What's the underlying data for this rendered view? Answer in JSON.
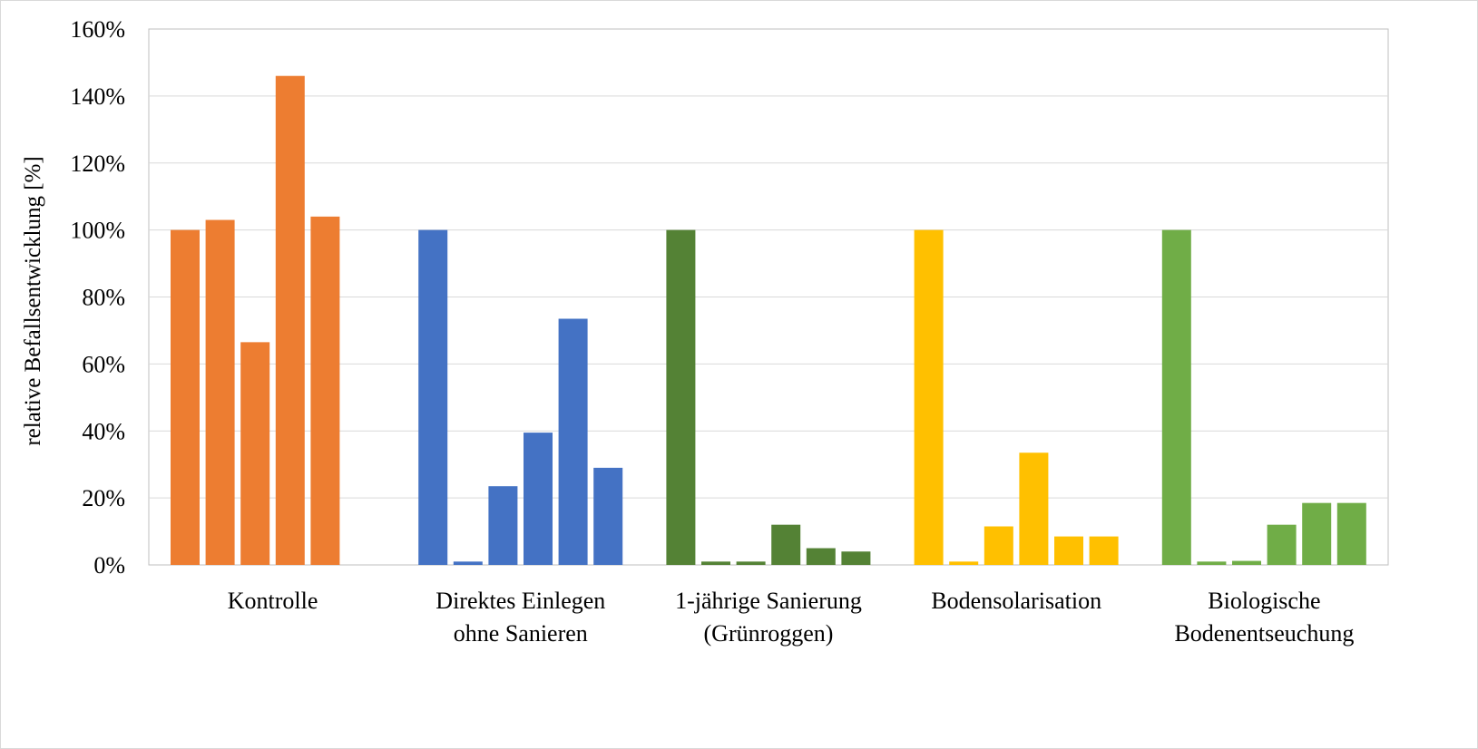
{
  "chart_data": {
    "type": "bar",
    "title": "",
    "xlabel": "",
    "ylabel": "relative Befallsentwicklung [%]",
    "ylim": [
      0,
      160
    ],
    "yticks": [
      0,
      20,
      40,
      60,
      80,
      100,
      120,
      140,
      160
    ],
    "ytick_suffix": "%",
    "grid": true,
    "legend": "none",
    "groups": [
      {
        "label": [
          "Kontrolle"
        ],
        "color": "#ED7D31",
        "values": [
          100,
          103,
          66.5,
          146,
          104
        ]
      },
      {
        "label": [
          "Direktes Einlegen",
          "ohne Sanieren"
        ],
        "color": "#4472C4",
        "values": [
          100,
          1,
          23.5,
          39.5,
          73.5,
          29
        ]
      },
      {
        "label": [
          "1-jährige Sanierung",
          "(Grünroggen)"
        ],
        "color": "#548235",
        "values": [
          100,
          1,
          1,
          12,
          5,
          4
        ]
      },
      {
        "label": [
          "Bodensolarisation"
        ],
        "color": "#FFC000",
        "values": [
          100,
          1,
          11.5,
          33.5,
          8.5,
          8.5
        ]
      },
      {
        "label": [
          "Biologische",
          "Bodenentseuchung"
        ],
        "color": "#70AD47",
        "values": [
          100,
          1,
          1.2,
          12,
          18.5,
          18.5
        ]
      }
    ]
  }
}
